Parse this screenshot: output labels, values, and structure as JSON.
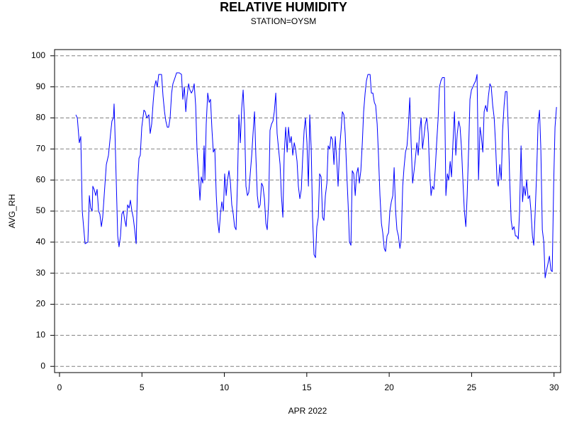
{
  "chart_data": {
    "type": "line",
    "title": "RELATIVE HUMIDITY",
    "subtitle": "STATION=OYSM",
    "x_label": "APR 2022",
    "y_label": "AVG_RH",
    "color": "#0000ff",
    "grid": true,
    "xlim": [
      -0.3,
      30.4
    ],
    "ylim": [
      -2,
      102
    ],
    "xticks": [
      0,
      5,
      10,
      15,
      20,
      25,
      30
    ],
    "yticks": [
      0,
      10,
      20,
      30,
      40,
      50,
      60,
      70,
      80,
      90,
      100
    ],
    "x": [
      0.99,
      1.08,
      1.2,
      1.29,
      1.38,
      1.46,
      1.55,
      1.72,
      1.81,
      1.89,
      1.98,
      2.02,
      2.1,
      2.2,
      2.28,
      2.37,
      2.45,
      2.54,
      2.62,
      2.71,
      2.84,
      2.97,
      3.1,
      3.18,
      3.27,
      3.31,
      3.35,
      3.44,
      3.53,
      3.61,
      3.7,
      3.78,
      3.87,
      3.96,
      4.04,
      4.13,
      4.22,
      4.3,
      4.39,
      4.47,
      4.56,
      4.65,
      4.73,
      4.82,
      4.9,
      4.99,
      5.12,
      5.2,
      5.29,
      5.42,
      5.5,
      5.59,
      5.68,
      5.76,
      5.85,
      5.93,
      6.02,
      6.19,
      6.28,
      6.37,
      6.45,
      6.54,
      6.62,
      6.71,
      6.8,
      6.88,
      7.01,
      7.1,
      7.27,
      7.4,
      7.48,
      7.57,
      7.66,
      7.74,
      7.83,
      7.91,
      8.0,
      8.09,
      8.17,
      8.26,
      8.34,
      8.43,
      8.52,
      8.6,
      8.69,
      8.77,
      8.82,
      8.9,
      8.99,
      9.08,
      9.16,
      9.25,
      9.33,
      9.42,
      9.51,
      9.59,
      9.68,
      9.76,
      9.85,
      9.94,
      10.02,
      10.11,
      10.19,
      10.28,
      10.37,
      10.45,
      10.54,
      10.62,
      10.71,
      10.8,
      10.88,
      10.97,
      11.05,
      11.14,
      11.23,
      11.31,
      11.4,
      11.48,
      11.57,
      11.66,
      11.74,
      11.83,
      11.91,
      12.0,
      12.09,
      12.17,
      12.26,
      12.34,
      12.43,
      12.52,
      12.6,
      12.69,
      12.77,
      12.86,
      12.95,
      13.03,
      13.12,
      13.2,
      13.29,
      13.38,
      13.46,
      13.55,
      13.63,
      13.72,
      13.81,
      13.89,
      13.98,
      14.06,
      14.15,
      14.24,
      14.32,
      14.41,
      14.49,
      14.58,
      14.67,
      14.75,
      14.84,
      14.92,
      15.01,
      15.1,
      15.18,
      15.27,
      15.35,
      15.44,
      15.53,
      15.61,
      15.7,
      15.78,
      15.87,
      15.96,
      16.04,
      16.13,
      16.22,
      16.3,
      16.39,
      16.47,
      16.56,
      16.65,
      16.73,
      16.82,
      16.9,
      16.99,
      17.08,
      17.16,
      17.25,
      17.33,
      17.42,
      17.51,
      17.59,
      17.68,
      17.76,
      17.85,
      17.94,
      18.02,
      18.11,
      18.19,
      18.28,
      18.37,
      18.45,
      18.54,
      18.62,
      18.71,
      18.84,
      18.92,
      19.01,
      19.1,
      19.18,
      19.27,
      19.35,
      19.44,
      19.53,
      19.61,
      19.7,
      19.78,
      19.87,
      19.96,
      20.04,
      20.13,
      20.22,
      20.3,
      20.39,
      20.47,
      20.56,
      20.65,
      20.73,
      20.82,
      20.9,
      20.99,
      21.08,
      21.16,
      21.25,
      21.33,
      21.42,
      21.51,
      21.59,
      21.68,
      21.76,
      21.85,
      21.94,
      22.02,
      22.11,
      22.19,
      22.28,
      22.37,
      22.45,
      22.54,
      22.62,
      22.71,
      22.8,
      22.88,
      22.97,
      23.05,
      23.14,
      23.23,
      23.35,
      23.44,
      23.53,
      23.61,
      23.7,
      23.78,
      23.87,
      23.96,
      24.04,
      24.13,
      24.22,
      24.3,
      24.39,
      24.47,
      24.56,
      24.65,
      24.73,
      24.82,
      24.9,
      24.99,
      25.08,
      25.16,
      25.25,
      25.33,
      25.42,
      25.51,
      25.59,
      25.68,
      25.76,
      25.85,
      25.94,
      26.02,
      26.11,
      26.19,
      26.28,
      26.37,
      26.45,
      26.54,
      26.62,
      26.71,
      26.8,
      26.88,
      26.97,
      27.05,
      27.14,
      27.23,
      27.31,
      27.4,
      27.48,
      27.57,
      27.66,
      27.74,
      27.83,
      27.91,
      28.0,
      28.09,
      28.17,
      28.26,
      28.34,
      28.43,
      28.52,
      28.6,
      28.69,
      28.77,
      28.86,
      28.95,
      29.03,
      29.12,
      29.2,
      29.29,
      29.38,
      29.46,
      29.55,
      29.63,
      29.72,
      29.81,
      29.89,
      29.98,
      30.06,
      30.15
    ],
    "values": [
      81,
      80,
      72,
      74,
      50,
      45,
      39.5,
      40,
      55,
      51,
      50,
      58,
      57,
      55,
      57,
      50,
      49,
      45,
      48,
      55,
      65,
      68,
      75,
      79,
      80,
      84.5,
      78,
      60,
      42,
      38.5,
      42,
      49,
      50,
      47,
      45,
      52,
      51,
      53.5,
      50,
      48,
      44,
      39.5,
      58,
      67,
      68,
      77,
      82.5,
      82,
      80,
      81,
      75,
      78,
      85,
      90,
      92,
      90,
      94,
      94,
      87,
      82,
      79,
      77,
      77,
      80,
      88,
      91,
      93,
      94.5,
      94.5,
      94,
      86,
      90,
      82,
      87,
      91,
      89,
      88,
      89,
      91,
      84,
      70,
      62,
      53.5,
      61,
      59,
      71,
      60,
      78,
      88,
      85,
      86,
      76,
      69,
      70,
      55,
      47,
      43,
      49,
      53,
      50,
      62,
      55,
      60,
      63,
      59,
      52,
      49,
      45,
      44,
      60,
      81,
      72,
      83,
      89,
      78,
      58,
      55,
      56,
      62,
      68,
      75,
      82,
      68,
      55,
      51,
      52,
      59,
      58,
      54,
      46,
      44,
      53,
      76,
      78,
      79,
      82,
      88,
      75,
      70,
      65,
      55,
      48,
      68,
      77,
      69,
      77,
      72,
      74,
      68,
      72,
      70,
      66,
      58,
      54,
      57,
      67,
      76,
      80,
      72,
      58,
      81,
      70,
      48,
      36,
      35,
      45,
      48,
      62,
      61,
      48,
      47,
      55,
      59,
      71,
      70,
      74,
      73,
      65,
      74,
      66,
      58,
      70,
      76,
      82,
      81,
      75,
      63,
      52,
      40,
      39,
      63,
      62,
      55,
      62,
      64,
      59,
      63,
      72,
      82,
      88,
      92,
      94,
      94,
      88,
      88,
      85,
      84,
      78,
      68,
      55,
      46,
      43,
      38,
      37,
      42,
      43,
      50,
      53,
      55,
      64,
      50,
      44,
      42,
      38,
      41,
      58,
      64,
      69,
      71,
      77,
      86.5,
      72,
      59,
      63,
      67,
      72,
      68,
      76,
      80,
      70,
      74,
      78,
      80,
      75,
      63,
      55,
      58,
      57,
      64,
      72,
      80,
      90,
      92,
      93,
      93,
      55,
      62,
      60,
      66,
      61,
      72,
      82,
      68,
      75,
      79,
      77,
      70,
      60,
      50,
      45,
      55,
      70,
      86,
      89,
      90,
      91,
      92,
      94,
      60,
      77,
      74,
      69,
      82,
      84,
      82,
      87,
      91,
      90,
      84,
      80,
      72,
      60,
      58,
      65,
      60,
      76,
      84,
      88.5,
      88.5,
      76,
      60,
      47,
      44,
      45,
      42,
      42,
      41,
      50,
      71,
      53,
      58,
      55,
      60,
      54,
      55,
      50,
      42,
      39,
      50,
      63,
      78,
      82.5,
      70,
      44,
      40,
      28.5,
      31,
      33,
      35.5,
      31,
      30.5,
      59,
      77,
      83.5
    ]
  }
}
